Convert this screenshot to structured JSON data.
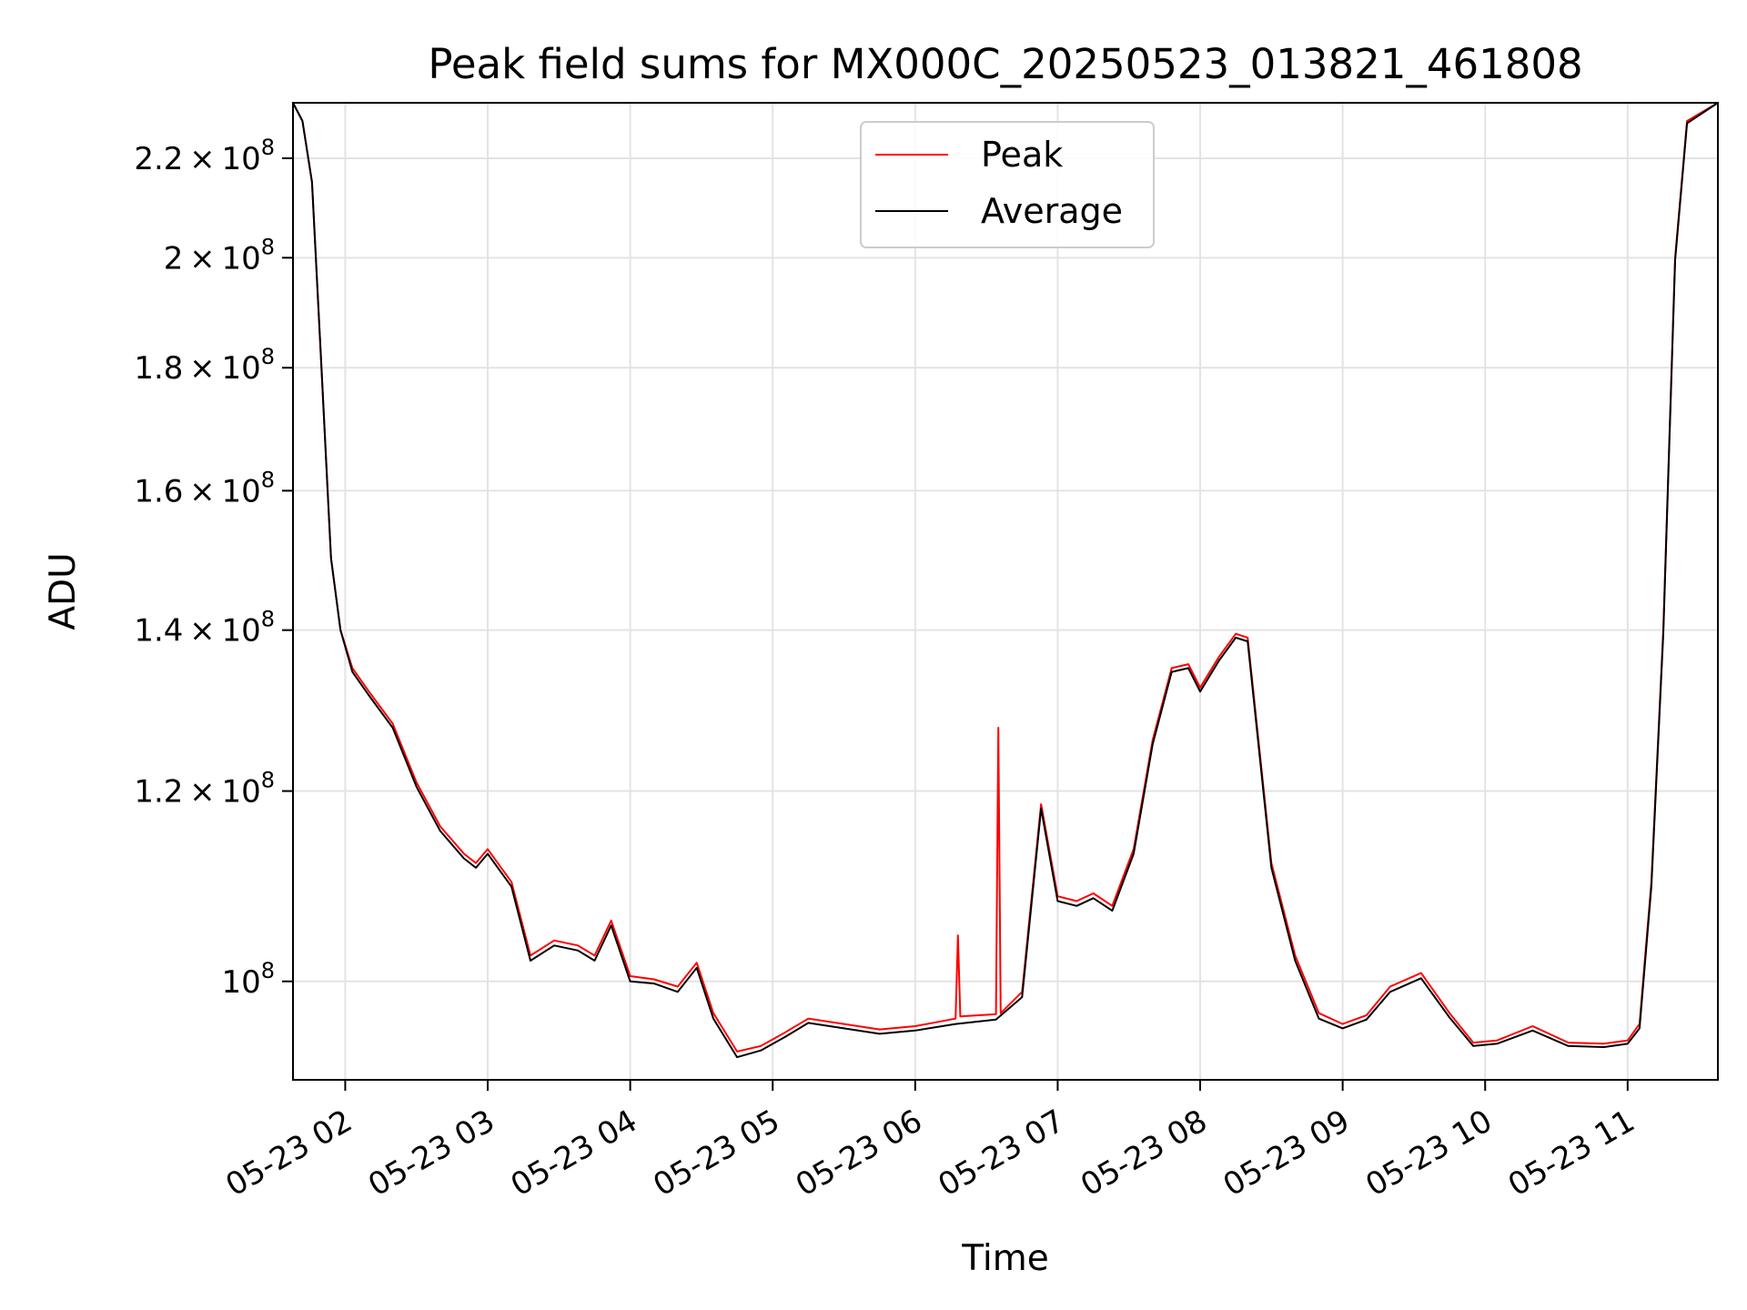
{
  "chart_data": {
    "type": "line",
    "title": "Peak field sums for MX000C_20250523_013821_461808",
    "xlabel": "Time",
    "ylabel": "ADU",
    "y_scale": "log",
    "grid": true,
    "legend_position": "top-center",
    "x_range": [
      "05-23 01:38",
      "05-23 11:38"
    ],
    "y_range": [
      91000000,
      232000000
    ],
    "x_ticks": [
      "05-23 02",
      "05-23 03",
      "05-23 04",
      "05-23 05",
      "05-23 06",
      "05-23 07",
      "05-23 08",
      "05-23 09",
      "05-23 10",
      "05-23 11"
    ],
    "y_ticks": [
      {
        "value": 100000000,
        "mantissa": "",
        "exponent": "8"
      },
      {
        "value": 120000000,
        "mantissa": "1.2",
        "exponent": "8"
      },
      {
        "value": 140000000,
        "mantissa": "1.4",
        "exponent": "8"
      },
      {
        "value": 160000000,
        "mantissa": "1.6",
        "exponent": "8"
      },
      {
        "value": 180000000,
        "mantissa": "1.8",
        "exponent": "8"
      },
      {
        "value": 200000000,
        "mantissa": "2",
        "exponent": "8"
      },
      {
        "value": 220000000,
        "mantissa": "2.2",
        "exponent": "8"
      }
    ],
    "times_text": "×",
    "tick_base": "10",
    "series": [
      {
        "name": "Peak",
        "color": "#ff0000",
        "values": [
          [
            "05-23 01:38",
            232000000
          ],
          [
            "05-23 01:42",
            228000000
          ],
          [
            "05-23 01:46",
            215000000
          ],
          [
            "05-23 01:50",
            180000000
          ],
          [
            "05-23 01:54",
            150000000
          ],
          [
            "05-23 01:58",
            140000000
          ],
          [
            "05-23 02:03",
            135000000
          ],
          [
            "05-23 02:10",
            132000000
          ],
          [
            "05-23 02:20",
            128000000
          ],
          [
            "05-23 02:30",
            121000000
          ],
          [
            "05-23 02:40",
            116000000
          ],
          [
            "05-23 02:50",
            113000000
          ],
          [
            "05-23 02:55",
            112000000
          ],
          [
            "05-23 03:00",
            113500000
          ],
          [
            "05-23 03:10",
            110000000
          ],
          [
            "05-23 03:18",
            102500000
          ],
          [
            "05-23 03:28",
            104000000
          ],
          [
            "05-23 03:38",
            103500000
          ],
          [
            "05-23 03:45",
            102500000
          ],
          [
            "05-23 03:52",
            106000000
          ],
          [
            "05-23 04:00",
            100500000
          ],
          [
            "05-23 04:10",
            100200000
          ],
          [
            "05-23 04:20",
            99500000
          ],
          [
            "05-23 04:28",
            101800000
          ],
          [
            "05-23 04:35",
            97000000
          ],
          [
            "05-23 04:45",
            93500000
          ],
          [
            "05-23 04:55",
            94000000
          ],
          [
            "05-23 05:05",
            95200000
          ],
          [
            "05-23 05:15",
            96500000
          ],
          [
            "05-23 05:30",
            96000000
          ],
          [
            "05-23 05:45",
            95500000
          ],
          [
            "05-23 06:00",
            95800000
          ],
          [
            "05-23 06:17",
            96500000
          ],
          [
            "05-23 06:18",
            104500000
          ],
          [
            "05-23 06:19",
            96700000
          ],
          [
            "05-23 06:34",
            96900000
          ],
          [
            "05-23 06:35",
            127500000
          ],
          [
            "05-23 06:36",
            97000000
          ],
          [
            "05-23 06:45",
            99000000
          ],
          [
            "05-23 06:53",
            118500000
          ],
          [
            "05-23 07:00",
            108500000
          ],
          [
            "05-23 07:08",
            108000000
          ],
          [
            "05-23 07:15",
            108800000
          ],
          [
            "05-23 07:23",
            107500000
          ],
          [
            "05-23 07:32",
            113500000
          ],
          [
            "05-23 07:40",
            126000000
          ],
          [
            "05-23 07:48",
            135000000
          ],
          [
            "05-23 07:55",
            135500000
          ],
          [
            "05-23 08:00",
            132500000
          ],
          [
            "05-23 08:08",
            136500000
          ],
          [
            "05-23 08:15",
            139500000
          ],
          [
            "05-23 08:20",
            139000000
          ],
          [
            "05-23 08:30",
            112000000
          ],
          [
            "05-23 08:40",
            102500000
          ],
          [
            "05-23 08:50",
            97000000
          ],
          [
            "05-23 09:00",
            96000000
          ],
          [
            "05-23 09:10",
            96800000
          ],
          [
            "05-23 09:20",
            99500000
          ],
          [
            "05-23 09:33",
            100800000
          ],
          [
            "05-23 09:45",
            97000000
          ],
          [
            "05-23 09:55",
            94300000
          ],
          [
            "05-23 10:05",
            94500000
          ],
          [
            "05-23 10:20",
            95800000
          ],
          [
            "05-23 10:35",
            94300000
          ],
          [
            "05-23 10:50",
            94200000
          ],
          [
            "05-23 11:00",
            94500000
          ],
          [
            "05-23 11:05",
            96000000
          ],
          [
            "05-23 11:10",
            110000000
          ],
          [
            "05-23 11:15",
            140000000
          ],
          [
            "05-23 11:20",
            200000000
          ],
          [
            "05-23 11:25",
            228000000
          ],
          [
            "05-23 11:38",
            232000000
          ]
        ]
      },
      {
        "name": "Average",
        "color": "#000000",
        "values": [
          [
            "05-23 01:38",
            232000000
          ],
          [
            "05-23 01:42",
            228000000
          ],
          [
            "05-23 01:46",
            215000000
          ],
          [
            "05-23 01:50",
            180000000
          ],
          [
            "05-23 01:54",
            150000000
          ],
          [
            "05-23 01:58",
            140000000
          ],
          [
            "05-23 02:03",
            134500000
          ],
          [
            "05-23 02:10",
            131500000
          ],
          [
            "05-23 02:20",
            127500000
          ],
          [
            "05-23 02:30",
            120500000
          ],
          [
            "05-23 02:40",
            115500000
          ],
          [
            "05-23 02:50",
            112500000
          ],
          [
            "05-23 02:55",
            111500000
          ],
          [
            "05-23 03:00",
            113000000
          ],
          [
            "05-23 03:10",
            109500000
          ],
          [
            "05-23 03:18",
            102000000
          ],
          [
            "05-23 03:28",
            103500000
          ],
          [
            "05-23 03:38",
            103000000
          ],
          [
            "05-23 03:45",
            102000000
          ],
          [
            "05-23 03:52",
            105500000
          ],
          [
            "05-23 04:00",
            100000000
          ],
          [
            "05-23 04:10",
            99800000
          ],
          [
            "05-23 04:20",
            99000000
          ],
          [
            "05-23 04:28",
            101300000
          ],
          [
            "05-23 04:35",
            96500000
          ],
          [
            "05-23 04:45",
            93000000
          ],
          [
            "05-23 04:55",
            93600000
          ],
          [
            "05-23 05:05",
            94800000
          ],
          [
            "05-23 05:15",
            96100000
          ],
          [
            "05-23 05:30",
            95600000
          ],
          [
            "05-23 05:45",
            95100000
          ],
          [
            "05-23 06:00",
            95400000
          ],
          [
            "05-23 06:17",
            96000000
          ],
          [
            "05-23 06:34",
            96400000
          ],
          [
            "05-23 06:45",
            98500000
          ],
          [
            "05-23 06:53",
            118000000
          ],
          [
            "05-23 07:00",
            108000000
          ],
          [
            "05-23 07:08",
            107500000
          ],
          [
            "05-23 07:15",
            108300000
          ],
          [
            "05-23 07:23",
            107000000
          ],
          [
            "05-23 07:32",
            113000000
          ],
          [
            "05-23 07:40",
            125500000
          ],
          [
            "05-23 07:48",
            134500000
          ],
          [
            "05-23 07:55",
            135000000
          ],
          [
            "05-23 08:00",
            132000000
          ],
          [
            "05-23 08:08",
            136000000
          ],
          [
            "05-23 08:15",
            139000000
          ],
          [
            "05-23 08:20",
            138500000
          ],
          [
            "05-23 08:30",
            111500000
          ],
          [
            "05-23 08:40",
            102000000
          ],
          [
            "05-23 08:50",
            96500000
          ],
          [
            "05-23 09:00",
            95600000
          ],
          [
            "05-23 09:10",
            96400000
          ],
          [
            "05-23 09:20",
            99000000
          ],
          [
            "05-23 09:33",
            100300000
          ],
          [
            "05-23 09:45",
            96600000
          ],
          [
            "05-23 09:55",
            94000000
          ],
          [
            "05-23 10:05",
            94200000
          ],
          [
            "05-23 10:20",
            95400000
          ],
          [
            "05-23 10:35",
            94000000
          ],
          [
            "05-23 10:50",
            93900000
          ],
          [
            "05-23 11:00",
            94200000
          ],
          [
            "05-23 11:05",
            95600000
          ],
          [
            "05-23 11:10",
            109500000
          ],
          [
            "05-23 11:15",
            139500000
          ],
          [
            "05-23 11:20",
            199500000
          ],
          [
            "05-23 11:25",
            227500000
          ],
          [
            "05-23 11:38",
            232000000
          ]
        ]
      }
    ]
  }
}
